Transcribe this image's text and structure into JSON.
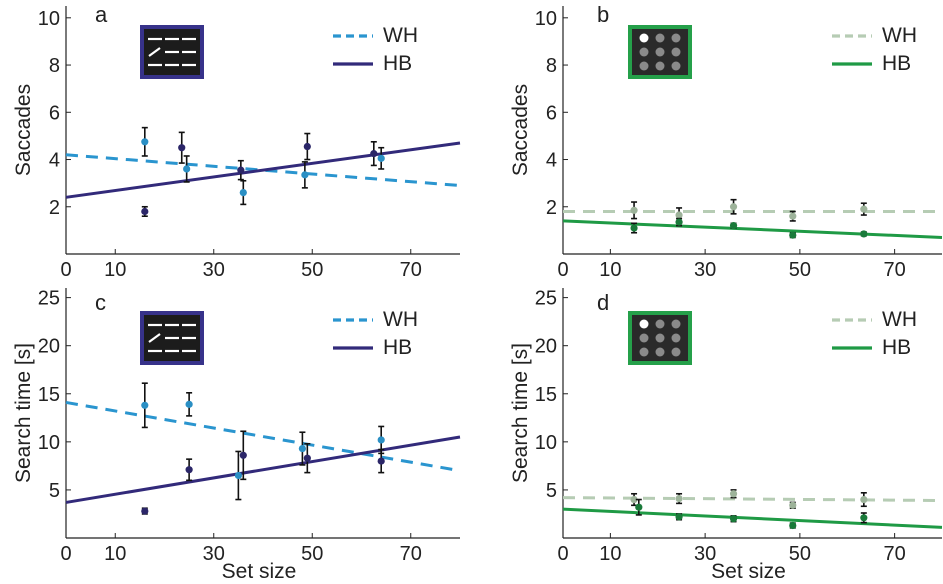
{
  "colors": {
    "panel_ab_wh": "#2a95cf",
    "panel_ab_hb": "#322a7a",
    "panel_cd_wh": "#b6ccb4",
    "panel_cd_hb": "#1f9a45",
    "point_wh_left": "#2a8fc4",
    "point_hb_left": "#2b2668",
    "point_wh_right": "#9db39a",
    "point_hb_right": "#1a7a3a",
    "icon_left_border": "#37328a",
    "icon_right_border": "#25a04a"
  },
  "chart_data": [
    {
      "panel": "a",
      "type": "scatter",
      "ylabel": "Saccades",
      "xlabel": "",
      "xlim": [
        0,
        80
      ],
      "ylim": [
        0,
        10.5
      ],
      "xticks": [
        0,
        10,
        30,
        50,
        70
      ],
      "yticks": [
        2,
        4,
        6,
        8,
        10
      ],
      "icon": "lines",
      "series": [
        {
          "name": "WH",
          "style": "dashed",
          "color_key": "panel_ab_wh",
          "point_color_key": "point_wh_left",
          "x": [
            16,
            24.5,
            36,
            48.5,
            64
          ],
          "y": [
            4.75,
            3.6,
            2.6,
            3.35,
            4.05
          ],
          "err": [
            0.6,
            0.55,
            0.5,
            0.55,
            0.45
          ],
          "fit": [
            [
              0,
              4.2
            ],
            [
              80,
              2.9
            ]
          ]
        },
        {
          "name": "HB",
          "style": "solid",
          "color_key": "panel_ab_hb",
          "point_color_key": "point_hb_left",
          "x": [
            16,
            23.5,
            35.5,
            49,
            62.5
          ],
          "y": [
            1.8,
            4.5,
            3.55,
            4.55,
            4.25
          ],
          "err": [
            0.2,
            0.65,
            0.4,
            0.55,
            0.5
          ],
          "fit": [
            [
              0,
              2.4
            ],
            [
              80,
              4.7
            ]
          ]
        }
      ]
    },
    {
      "panel": "b",
      "type": "scatter",
      "ylabel": "Saccades",
      "xlabel": "",
      "xlim": [
        0,
        80
      ],
      "ylim": [
        0,
        10.5
      ],
      "xticks": [
        0,
        10,
        30,
        50,
        70
      ],
      "yticks": [
        2,
        4,
        6,
        8,
        10
      ],
      "icon": "dots",
      "series": [
        {
          "name": "WH",
          "style": "dashed",
          "color_key": "panel_cd_wh",
          "point_color_key": "point_wh_right",
          "x": [
            15,
            24.5,
            36,
            48.5,
            63.5
          ],
          "y": [
            1.85,
            1.65,
            2.0,
            1.6,
            1.9
          ],
          "err": [
            0.35,
            0.3,
            0.3,
            0.2,
            0.25
          ],
          "fit": [
            [
              0,
              1.8
            ],
            [
              80,
              1.8
            ]
          ]
        },
        {
          "name": "HB",
          "style": "solid",
          "color_key": "panel_cd_hb",
          "point_color_key": "point_hb_right",
          "x": [
            15,
            24.5,
            36,
            48.5,
            63.5
          ],
          "y": [
            1.1,
            1.35,
            1.2,
            0.8,
            0.85
          ],
          "err": [
            0.2,
            0.15,
            0.1,
            0.1,
            0.08
          ],
          "fit": [
            [
              0,
              1.4
            ],
            [
              80,
              0.7
            ]
          ]
        }
      ]
    },
    {
      "panel": "c",
      "type": "scatter",
      "ylabel": "Search time [s]",
      "xlabel": "Set size",
      "xlim": [
        0,
        80
      ],
      "ylim": [
        0,
        26
      ],
      "xticks": [
        0,
        10,
        30,
        50,
        70
      ],
      "yticks": [
        5,
        10,
        15,
        20,
        25
      ],
      "icon": "lines",
      "series": [
        {
          "name": "WH",
          "style": "dashed",
          "color_key": "panel_ab_wh",
          "point_color_key": "point_wh_left",
          "x": [
            16,
            25,
            35,
            48,
            64
          ],
          "y": [
            13.8,
            13.9,
            6.5,
            9.3,
            10.2
          ],
          "err": [
            2.3,
            1.2,
            2.5,
            1.7,
            1.4
          ],
          "fit": [
            [
              0,
              14.1
            ],
            [
              80,
              7.0
            ]
          ]
        },
        {
          "name": "HB",
          "style": "solid",
          "color_key": "panel_ab_hb",
          "point_color_key": "point_hb_left",
          "x": [
            16,
            25,
            36,
            49,
            64
          ],
          "y": [
            2.8,
            7.1,
            8.6,
            8.3,
            8.0
          ],
          "err": [
            0.3,
            1.1,
            2.5,
            1.5,
            1.2
          ],
          "fit": [
            [
              0,
              3.7
            ],
            [
              80,
              10.5
            ]
          ]
        }
      ]
    },
    {
      "panel": "d",
      "type": "scatter",
      "ylabel": "Search time [s]",
      "xlabel": "Set size",
      "xlim": [
        0,
        80
      ],
      "ylim": [
        0,
        26
      ],
      "xticks": [
        0,
        10,
        30,
        50,
        70
      ],
      "yticks": [
        5,
        10,
        15,
        20,
        25
      ],
      "icon": "dots",
      "series": [
        {
          "name": "WH",
          "style": "dashed",
          "color_key": "panel_cd_wh",
          "point_color_key": "point_wh_right",
          "x": [
            15,
            24.5,
            36,
            48.5,
            63.5
          ],
          "y": [
            4.0,
            4.1,
            4.6,
            3.4,
            4.0
          ],
          "err": [
            0.6,
            0.5,
            0.4,
            0.3,
            0.7
          ],
          "fit": [
            [
              0,
              4.2
            ],
            [
              80,
              3.9
            ]
          ]
        },
        {
          "name": "HB",
          "style": "solid",
          "color_key": "panel_cd_hb",
          "point_color_key": "point_hb_right",
          "x": [
            16,
            24.5,
            36,
            48.5,
            63.5
          ],
          "y": [
            3.2,
            2.2,
            2.0,
            1.3,
            2.1
          ],
          "err": [
            0.8,
            0.3,
            0.3,
            0.25,
            0.5
          ],
          "fit": [
            [
              0,
              3.0
            ],
            [
              80,
              1.1
            ]
          ]
        }
      ]
    }
  ]
}
